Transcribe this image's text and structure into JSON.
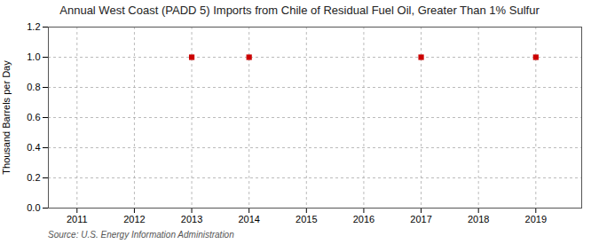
{
  "chart_data": {
    "type": "scatter",
    "title": "Annual West Coast (PADD 5) Imports from Chile of Residual Fuel Oil, Greater Than 1% Sulfur",
    "ylabel": "Thousand Barrels per Day",
    "source": "Source: U.S. Energy Information Administration",
    "x": [
      2013,
      2014,
      2017,
      2019
    ],
    "values": [
      1.0,
      1.0,
      1.0,
      1.0
    ],
    "color": "#CC0000",
    "marker": "square",
    "xlim": [
      2010.5,
      2019.8
    ],
    "ylim": [
      0.0,
      1.2
    ],
    "xticks": [
      2011,
      2012,
      2013,
      2014,
      2015,
      2016,
      2017,
      2018,
      2019
    ],
    "yticks": [
      {
        "value": 0,
        "label": "0.0"
      },
      0.2,
      0.4,
      0.6,
      0.8,
      {
        "value": 1,
        "label": "1.0"
      },
      1.2
    ],
    "grid": true
  }
}
